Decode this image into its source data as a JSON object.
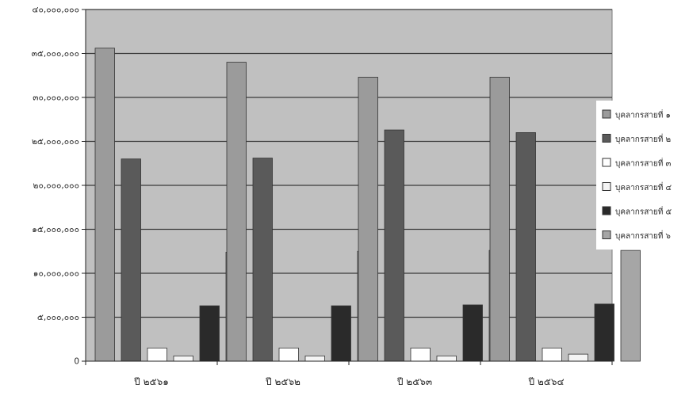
{
  "chart_data": {
    "type": "bar",
    "title": "",
    "xlabel": "",
    "ylabel": "",
    "ylim": [
      0,
      40000000
    ],
    "y_ticks": [
      0,
      5000000,
      10000000,
      15000000,
      20000000,
      25000000,
      30000000,
      35000000,
      40000000
    ],
    "y_tick_labels": [
      "0",
      "๕,๐๐๐,๐๐๐",
      "๑๐,๐๐๐,๐๐๐",
      "๑๕,๐๐๐,๐๐๐",
      "๒๐,๐๐๐,๐๐๐",
      "๒๕,๐๐๐,๐๐๐",
      "๓๐,๐๐๐,๐๐๐",
      "๓๕,๐๐๐,๐๐๐",
      "๔๐,๐๐๐,๐๐๐"
    ],
    "categories": [
      "ปี ๒๕๖๑",
      "ปี ๒๕๖๒",
      "ปี ๒๕๖๓",
      "ปี ๒๕๖๔"
    ],
    "grid": true,
    "legend_position": "right",
    "plot_background": "#c0c0c0",
    "series": [
      {
        "name": "บุคลากรสายที่ ๑",
        "color": "#9b9b9b",
        "values": [
          35600000,
          34000000,
          32300000,
          32300000
        ]
      },
      {
        "name": "บุคลากรสายที่ ๒",
        "color": "#5a5a5a",
        "values": [
          23000000,
          23100000,
          26300000,
          26000000
        ]
      },
      {
        "name": "บุคลากรสายที่ ๓",
        "color": "#ffffff",
        "values": [
          1500000,
          1500000,
          1500000,
          1500000
        ]
      },
      {
        "name": "บุคลากรสายที่ ๔",
        "color": "#f4f4f4",
        "values": [
          600000,
          600000,
          600000,
          800000
        ]
      },
      {
        "name": "บุคลากรสายที่ ๕",
        "color": "#2a2a2a",
        "values": [
          6300000,
          6300000,
          6400000,
          6500000
        ]
      },
      {
        "name": "บุคลากรสายที่ ๖",
        "color": "#a6a6a6",
        "values": [
          12400000,
          12500000,
          12600000,
          12600000
        ]
      }
    ]
  }
}
